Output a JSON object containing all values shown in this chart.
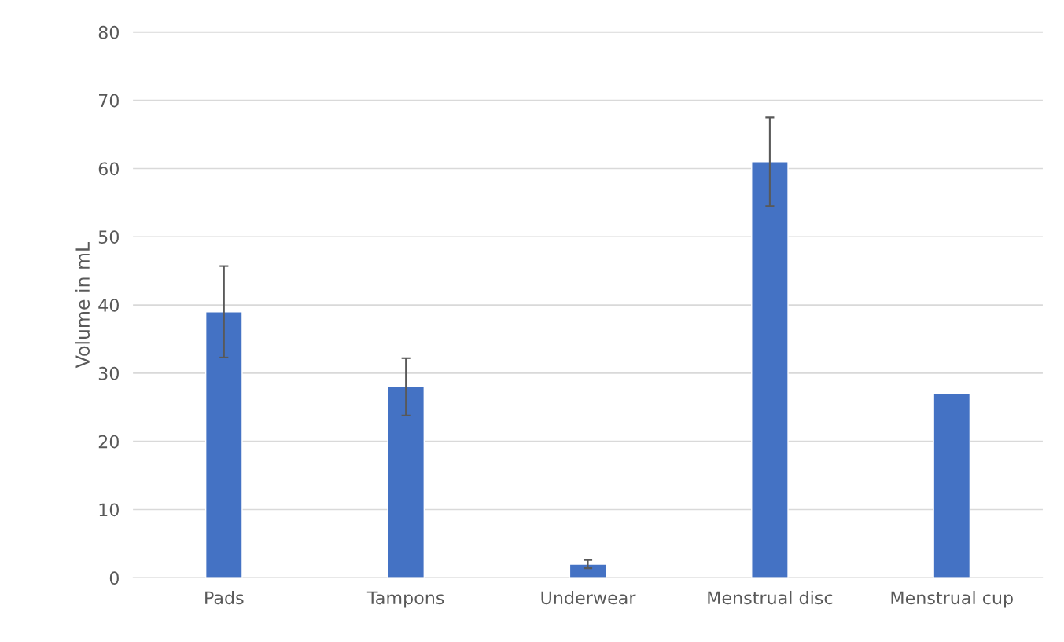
{
  "chart_data": {
    "type": "bar",
    "ylabel": "Volume in mL",
    "categories": [
      "Pads",
      "Tampons",
      "Underwear",
      "Menstrual disc",
      "Menstrual cup"
    ],
    "values": [
      39,
      28,
      2,
      61,
      27
    ],
    "errors": [
      6.7,
      4.2,
      0.6,
      6.5,
      null
    ],
    "color": "#4472c4",
    "ylim": [
      0,
      80
    ],
    "yticks": [
      0,
      10,
      20,
      30,
      40,
      50,
      60,
      70,
      80
    ],
    "grid": "y",
    "legend": false
  }
}
